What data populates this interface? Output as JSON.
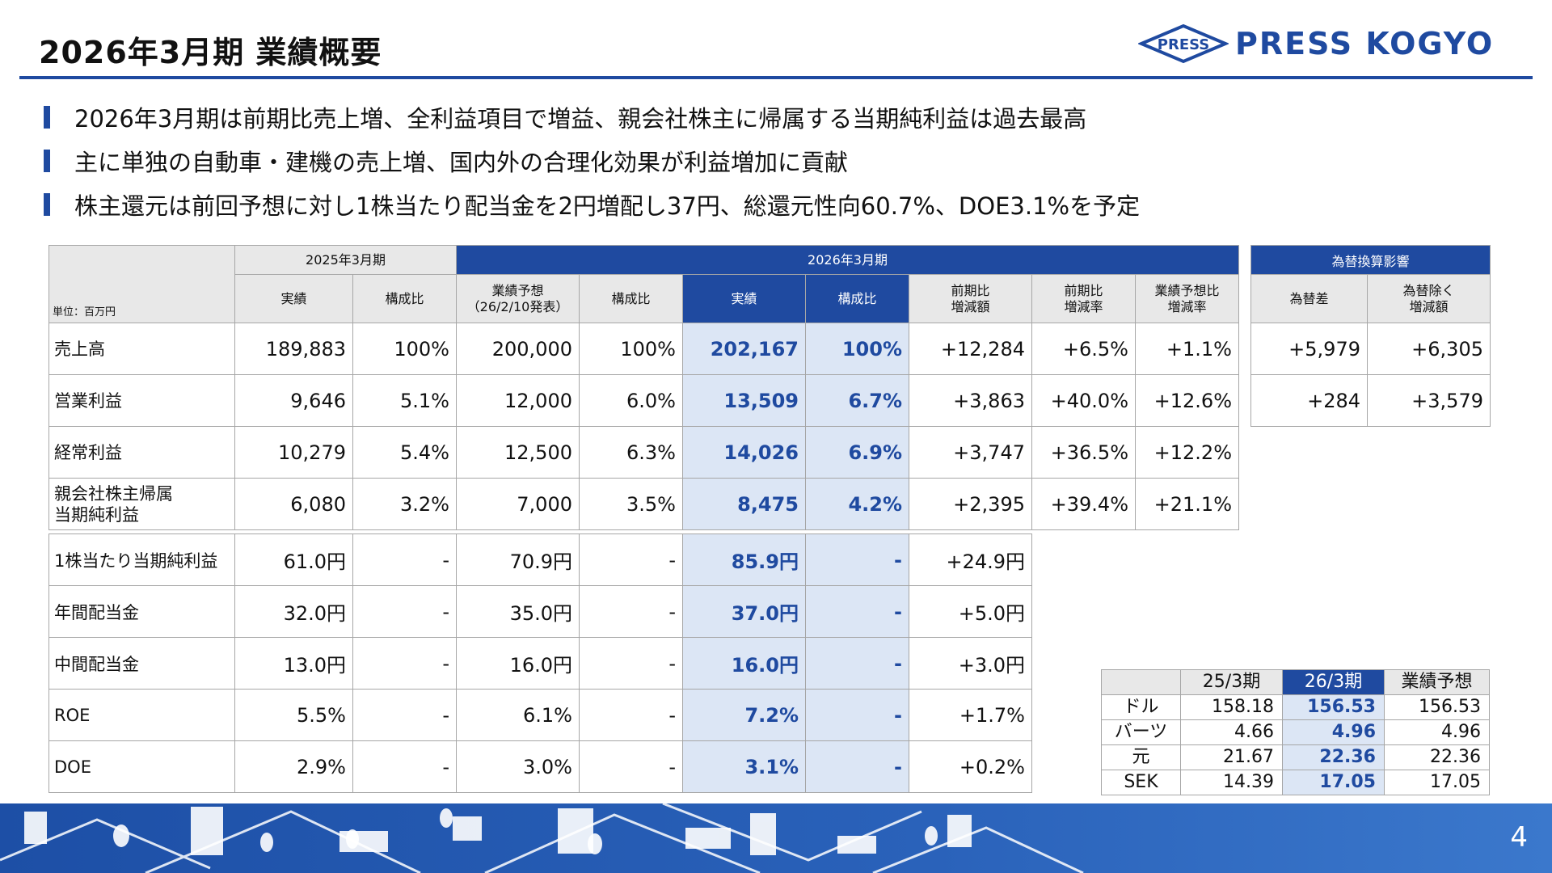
{
  "title": "2026年3月期  業績概要",
  "logo": {
    "emblem": "PRESS",
    "text": "PRESS KOGYO"
  },
  "bullets": [
    "2026年3月期は前期比売上増、全利益項目で増益、親会社株主に帰属する当期純利益は過去最高",
    "主に単独の自動車・建機の売上増、国内外の合理化効果が利益増加に貢献",
    "株主還元は前回予想に対し1株当たり配当金を2円増配し37円、総還元性向60.7%、DOE3.1%を予定"
  ],
  "table": {
    "unit": "単位：百万円",
    "group_2025": "2025年3月期",
    "group_2026": "2026年3月期",
    "headers": {
      "actual": "実績",
      "ratio": "構成比",
      "forecast_l1": "業績予想",
      "forecast_l2": "（26/2/10発表）",
      "ratio2": "構成比",
      "actual2": "実績",
      "ratio3": "構成比",
      "yoy_amt_l1": "前期比",
      "yoy_amt_l2": "増減額",
      "yoy_rate_l1": "前期比",
      "yoy_rate_l2": "増減率",
      "fc_rate_l1": "業績予想比",
      "fc_rate_l2": "増減率"
    },
    "rows": [
      {
        "label_l1": "売上高",
        "label_l2": "",
        "c1": "189,883",
        "c2": "100%",
        "c3": "200,000",
        "c4": "100%",
        "c5": "202,167",
        "c6": "100%",
        "c7": "+12,284",
        "c8": "+6.5%",
        "c9": "+1.1%"
      },
      {
        "label_l1": "営業利益",
        "label_l2": "",
        "c1": "9,646",
        "c2": "5.1%",
        "c3": "12,000",
        "c4": "6.0%",
        "c5": "13,509",
        "c6": "6.7%",
        "c7": "+3,863",
        "c8": "+40.0%",
        "c9": "+12.6%"
      },
      {
        "label_l1": "経常利益",
        "label_l2": "",
        "c1": "10,279",
        "c2": "5.4%",
        "c3": "12,500",
        "c4": "6.3%",
        "c5": "14,026",
        "c6": "6.9%",
        "c7": "+3,747",
        "c8": "+36.5%",
        "c9": "+12.2%"
      },
      {
        "label_l1": "親会社株主帰属",
        "label_l2": "当期純利益",
        "c1": "6,080",
        "c2": "3.2%",
        "c3": "7,000",
        "c4": "3.5%",
        "c5": "8,475",
        "c6": "4.2%",
        "c7": "+2,395",
        "c8": "+39.4%",
        "c9": "+21.1%"
      }
    ],
    "rows2": [
      {
        "label": "1株当たり当期純利益",
        "c1": "61.0円",
        "c2": "-",
        "c3": "70.9円",
        "c4": "-",
        "c5": "85.9円",
        "c6": "-",
        "c7": "+24.9円"
      },
      {
        "label": "年間配当金",
        "c1": "32.0円",
        "c2": "-",
        "c3": "35.0円",
        "c4": "-",
        "c5": "37.0円",
        "c6": "-",
        "c7": "+5.0円"
      },
      {
        "label": "中間配当金",
        "c1": "13.0円",
        "c2": "-",
        "c3": "16.0円",
        "c4": "-",
        "c5": "16.0円",
        "c6": "-",
        "c7": "+3.0円"
      },
      {
        "label": "ROE",
        "c1": "5.5%",
        "c2": "-",
        "c3": "6.1%",
        "c4": "-",
        "c5": "7.2%",
        "c6": "-",
        "c7": "+1.7%"
      },
      {
        "label": "DOE",
        "c1": "2.9%",
        "c2": "-",
        "c3": "3.0%",
        "c4": "-",
        "c5": "3.1%",
        "c6": "-",
        "c7": "+0.2%"
      }
    ]
  },
  "fx": {
    "group": "為替換算影響",
    "h1": "為替差",
    "h2_l1": "為替除く",
    "h2_l2": "増減額",
    "rows": [
      {
        "a": "+5,979",
        "b": "+6,305"
      },
      {
        "a": "+284",
        "b": "+3,579"
      }
    ]
  },
  "rates": {
    "headers": [
      "25/3期",
      "26/3期",
      "業績予想"
    ],
    "rows": [
      {
        "cur": "ドル",
        "a": "158.18",
        "b": "156.53",
        "c": "156.53"
      },
      {
        "cur": "バーツ",
        "a": "4.66",
        "b": "4.96",
        "c": "4.96"
      },
      {
        "cur": "元",
        "a": "21.67",
        "b": "22.36",
        "c": "22.36"
      },
      {
        "cur": "SEK",
        "a": "14.39",
        "b": "17.05",
        "c": "17.05"
      }
    ]
  },
  "page_number": "4",
  "colors": {
    "brand": "#1f4aa0",
    "highlight": "#dce6f5",
    "header_gray": "#e8e8e8",
    "footer": "#2a5fb4"
  }
}
